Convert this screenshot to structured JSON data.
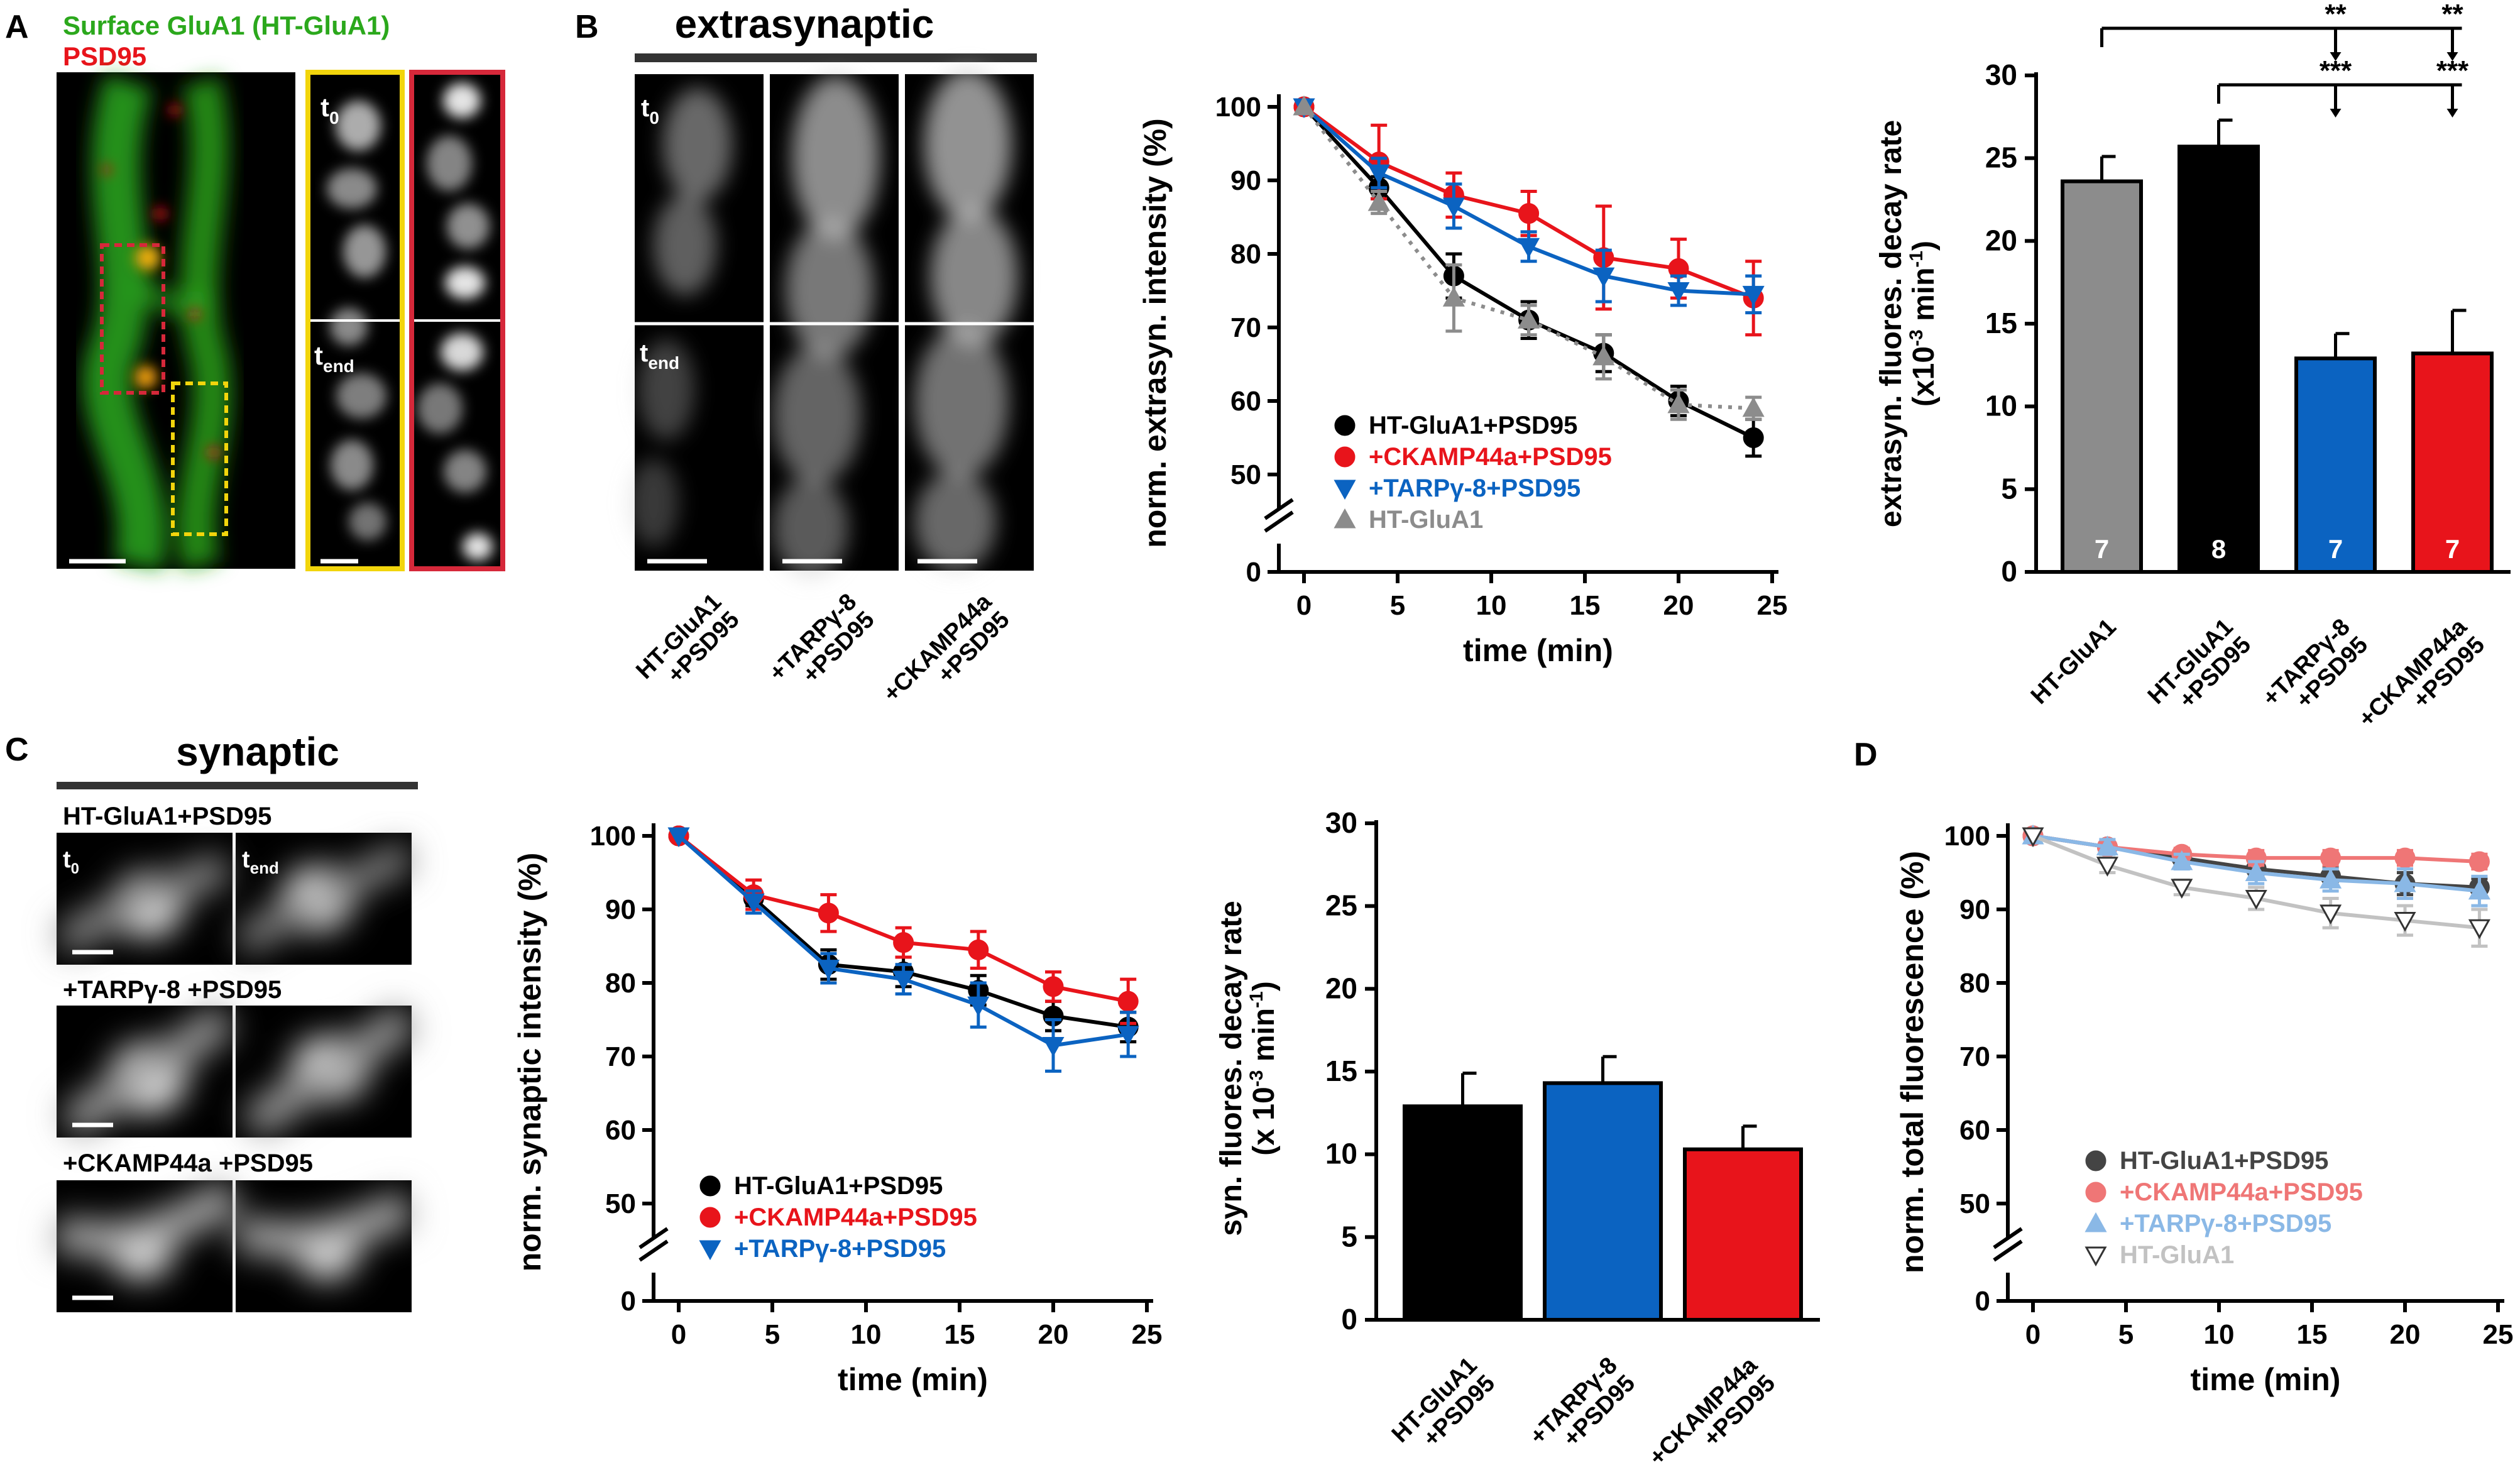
{
  "panel_letters": {
    "a": "A",
    "b": "B",
    "c": "C",
    "d": "D"
  },
  "colors": {
    "black": "#000000",
    "red": "#e8141b",
    "blue": "#0b63c1",
    "gray": "#8c8c8c",
    "green": "#2ba81c",
    "yellow": "#f2d50c",
    "outline_red": "#d6283a",
    "d_dark": "#444444",
    "d_pink": "#ef7676",
    "d_lightblue": "#8ab8e6",
    "d_lightgray": "#c2c2c2"
  },
  "panel_a": {
    "label_green": "Surface GluA1 (HT-GluA1)",
    "label_red": "PSD95",
    "t0": "t",
    "t0_sub": "0",
    "tend": "t",
    "tend_sub": "end"
  },
  "panel_b_images": {
    "header": "extrasynaptic",
    "t0": "t",
    "t0_sub": "0",
    "tend": "t",
    "tend_sub": "end",
    "labels": [
      {
        "line1": "HT-GluA1",
        "line2": "+PSD95"
      },
      {
        "line1": "+TARPγ-8",
        "line2": "+PSD95"
      },
      {
        "line1": "+CKAMP44a",
        "line2": "+PSD95"
      }
    ]
  },
  "panel_c_images": {
    "header": "synaptic",
    "t0": "t",
    "t0_sub": "0",
    "tend": "t",
    "tend_sub": "end",
    "rows": [
      "HT-GluA1+PSD95",
      "+TARPγ-8 +PSD95",
      "+CKAMP44a +PSD95"
    ]
  },
  "chart_data": [
    {
      "id": "B-line",
      "type": "line",
      "title": "",
      "xlabel": "time (min)",
      "ylabel": "norm. extrasyn. intensity (%)",
      "xlim": [
        0,
        25
      ],
      "ylim": [
        45,
        100
      ],
      "xticks": [
        0,
        5,
        10,
        15,
        20,
        25
      ],
      "yticks": [
        50,
        60,
        70,
        80,
        90,
        100
      ],
      "yticks_extra": [
        0
      ],
      "legend_position": "center",
      "series": [
        {
          "name": "HT-GluA1+PSD95",
          "color": "#000000",
          "marker": "circle",
          "x": [
            0,
            4,
            8,
            12,
            16,
            20,
            24
          ],
          "y": [
            100,
            89,
            77,
            71,
            66.5,
            60,
            55
          ],
          "err": [
            0,
            1.5,
            3,
            2.5,
            2.5,
            2,
            2.5
          ]
        },
        {
          "name": "+CKAMP44a+PSD95",
          "color": "#e8141b",
          "marker": "circle",
          "x": [
            0,
            4,
            8,
            12,
            16,
            20,
            24
          ],
          "y": [
            100,
            92.5,
            88,
            85.5,
            79.5,
            78,
            74
          ],
          "err": [
            0,
            5,
            3,
            3,
            7,
            4,
            5
          ]
        },
        {
          "name": "+TARPγ-8+PSD95",
          "color": "#0b63c1",
          "marker": "tri-down",
          "x": [
            0,
            4,
            8,
            12,
            16,
            20,
            24
          ],
          "y": [
            100,
            91,
            86.5,
            81,
            77,
            75,
            74.5
          ],
          "err": [
            0,
            2,
            3,
            2,
            3.5,
            2,
            2.5
          ]
        },
        {
          "name": "HT-GluA1",
          "color": "#8c8c8c",
          "marker": "tri-up",
          "dashed": true,
          "x": [
            0,
            4,
            8,
            12,
            16,
            20,
            24
          ],
          "y": [
            100,
            87,
            74,
            71,
            66,
            59.5,
            59
          ],
          "err": [
            0,
            1.5,
            4.5,
            2,
            3,
            2,
            1.5
          ]
        }
      ]
    },
    {
      "id": "B-bar",
      "type": "bar",
      "ylabel_line1": "extrasyn. fluores. decay rate",
      "ylabel_line2": "(x10",
      "ylabel_sup1": "-3",
      "ylabel_mid": " min",
      "ylabel_sup2": "-1",
      "ylabel_end": ")",
      "ylim": [
        0,
        30
      ],
      "yticks": [
        0,
        5,
        10,
        15,
        20,
        25,
        30
      ],
      "categories": [
        {
          "line1": "HT-GluA1",
          "line2": ""
        },
        {
          "line1": "HT-GluA1",
          "line2": "+PSD95"
        },
        {
          "line1": "+TARPγ-8",
          "line2": "+PSD95"
        },
        {
          "line1": "+CKAMP44a",
          "line2": "+PSD95"
        }
      ],
      "values": [
        23.6,
        25.7,
        12.9,
        13.2
      ],
      "err": [
        1.5,
        1.6,
        1.5,
        2.6
      ],
      "n": [
        "7",
        "8",
        "7",
        "7"
      ],
      "colors": [
        "#8c8c8c",
        "#000000",
        "#0b63c1",
        "#e8141b"
      ],
      "significance": [
        {
          "from": 0,
          "to": [
            2,
            3
          ],
          "labels": [
            "**",
            "**"
          ]
        },
        {
          "from": 1,
          "to": [
            2,
            3
          ],
          "labels": [
            "***",
            "***"
          ]
        }
      ]
    },
    {
      "id": "C-line",
      "type": "line",
      "xlabel": "time (min)",
      "ylabel": "norm. synaptic intensity (%)",
      "xlim": [
        0,
        25
      ],
      "ylim": [
        45,
        100
      ],
      "xticks": [
        0,
        5,
        10,
        15,
        20,
        25
      ],
      "yticks": [
        50,
        60,
        70,
        80,
        90,
        100
      ],
      "yticks_extra": [
        0
      ],
      "legend_position": "bottom-left",
      "series": [
        {
          "name": "HT-GluA1+PSD95",
          "color": "#000000",
          "marker": "circle",
          "x": [
            0,
            4,
            8,
            12,
            16,
            20,
            24
          ],
          "y": [
            100,
            91.5,
            82.5,
            81.5,
            79,
            75.5,
            74
          ],
          "err": [
            0,
            1,
            2,
            2,
            2,
            2,
            2
          ]
        },
        {
          "name": "+CKAMP44a+PSD95",
          "color": "#e8141b",
          "marker": "circle",
          "x": [
            0,
            4,
            8,
            12,
            16,
            20,
            24
          ],
          "y": [
            100,
            92,
            89.5,
            85.5,
            84.5,
            79.5,
            77.5
          ],
          "err": [
            0,
            2,
            2.5,
            2,
            2.5,
            2,
            3
          ]
        },
        {
          "name": "+TARPγ-8+PSD95",
          "color": "#0b63c1",
          "marker": "tri-down",
          "x": [
            0,
            4,
            8,
            12,
            16,
            20,
            24
          ],
          "y": [
            100,
            91,
            82,
            80.5,
            77,
            71.5,
            73
          ],
          "err": [
            0,
            1.5,
            2,
            2,
            3,
            3.5,
            3
          ]
        }
      ]
    },
    {
      "id": "C-bar",
      "type": "bar",
      "ylabel_line1": "syn. fluores. decay rate",
      "ylabel_line2": "(x 10",
      "ylabel_sup1": "-3",
      "ylabel_mid": " min",
      "ylabel_sup2": "-1",
      "ylabel_end": ")",
      "ylim": [
        0,
        30
      ],
      "yticks": [
        0,
        5,
        10,
        15,
        20,
        25,
        30
      ],
      "categories": [
        {
          "line1": "HT-GluA1",
          "line2": "+PSD95"
        },
        {
          "line1": "+TARPγ-8",
          "line2": "+PSD95"
        },
        {
          "line1": "+CKAMP44a",
          "line2": "+PSD95"
        }
      ],
      "values": [
        12.9,
        14.3,
        10.3
      ],
      "err": [
        2.0,
        1.6,
        1.4
      ],
      "colors": [
        "#000000",
        "#0b63c1",
        "#e8141b"
      ]
    },
    {
      "id": "D-line",
      "type": "line",
      "xlabel": "time (min)",
      "ylabel": "norm. total fluorescence (%)",
      "xlim": [
        0,
        25
      ],
      "ylim": [
        45,
        100
      ],
      "xticks": [
        0,
        5,
        10,
        15,
        20,
        25
      ],
      "yticks": [
        50,
        60,
        70,
        80,
        90,
        100
      ],
      "yticks_extra": [
        0
      ],
      "legend_position": "bottom-left",
      "series": [
        {
          "name": "HT-GluA1+PSD95",
          "color": "#444444",
          "marker": "circle",
          "x": [
            0,
            4,
            8,
            12,
            16,
            20,
            24
          ],
          "y": [
            100,
            98.5,
            97,
            95.5,
            94.5,
            93.5,
            93
          ],
          "err": [
            0,
            0.5,
            0.8,
            1,
            1.2,
            1.5,
            1.2
          ]
        },
        {
          "name": "+CKAMP44a+PSD95",
          "color": "#ef7676",
          "marker": "circle",
          "x": [
            0,
            4,
            8,
            12,
            16,
            20,
            24
          ],
          "y": [
            100,
            98.5,
            97.5,
            97,
            97,
            97,
            96.5
          ],
          "err": [
            0,
            0.5,
            0.8,
            1,
            1,
            1,
            1
          ]
        },
        {
          "name": "+TARPγ-8+PSD95",
          "color": "#8ab8e6",
          "marker": "tri-up",
          "x": [
            0,
            4,
            8,
            12,
            16,
            20,
            24
          ],
          "y": [
            100,
            98.5,
            96.5,
            95,
            94,
            93.5,
            92.5
          ],
          "err": [
            0,
            1,
            1,
            1.5,
            1.5,
            2,
            2
          ]
        },
        {
          "name": "HT-GluA1",
          "color": "#c2c2c2",
          "marker": "tri-down",
          "x": [
            0,
            4,
            8,
            12,
            16,
            20,
            24
          ],
          "y": [
            100,
            96,
            93,
            91.5,
            89.5,
            88.5,
            87.5
          ],
          "err": [
            0,
            1,
            1,
            1.5,
            2,
            2,
            2.5
          ]
        }
      ]
    }
  ]
}
